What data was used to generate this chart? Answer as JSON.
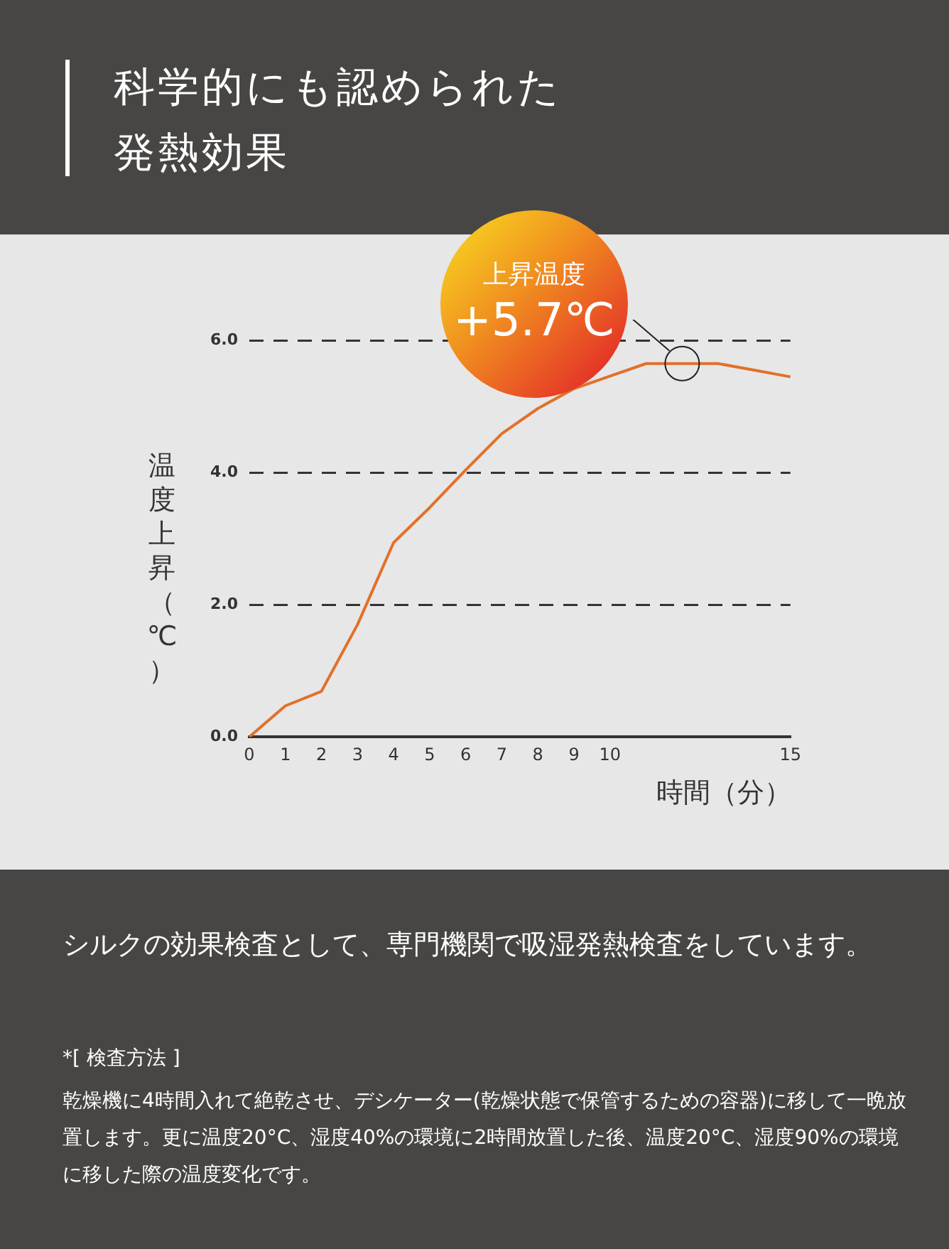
{
  "chart_data": {
    "type": "line",
    "title": "科学的にも認められた発熱効果",
    "subtitle": "シルクの効果検査として、専門機関で吸湿発熱検査をしています。",
    "xlabel": "時間（分）",
    "ylabel": "温度上昇（℃）",
    "categories": [
      "0",
      "1",
      "2",
      "3",
      "4",
      "5",
      "6",
      "7",
      "8",
      "9",
      "10",
      null,
      null,
      null,
      null,
      "15"
    ],
    "series": [
      {
        "color": "#e2702a",
        "values": [
          0,
          0.47,
          0.69,
          1.7,
          2.94,
          3.47,
          4.04,
          4.59,
          4.97,
          5.27,
          5.46,
          5.65,
          5.65,
          5.65,
          5.55,
          5.45
        ]
      }
    ],
    "ylim": [
      0,
      6
    ],
    "yticks": [
      {
        "value": 0,
        "label": "0.0"
      },
      {
        "value": 2,
        "label": "2.0"
      },
      {
        "value": 4,
        "label": "4.0"
      },
      {
        "value": 6,
        "label": "6.0"
      }
    ],
    "grid": "y",
    "line_style": "solid",
    "marker": "none",
    "legend": false,
    "annotations": [
      "上昇温度",
      "+5.7℃",
      "*[ 検査方法 ]",
      "乾燥機に4時間入れて絶乾させ、デシケーター(乾燥状態で保管するための容器)に移して一晩放置します。更に温度20°C、湿度40%の環境に2時間放置した後、温度20°C、湿度90%の環境に移した際の温度変化です。"
    ]
  }
}
